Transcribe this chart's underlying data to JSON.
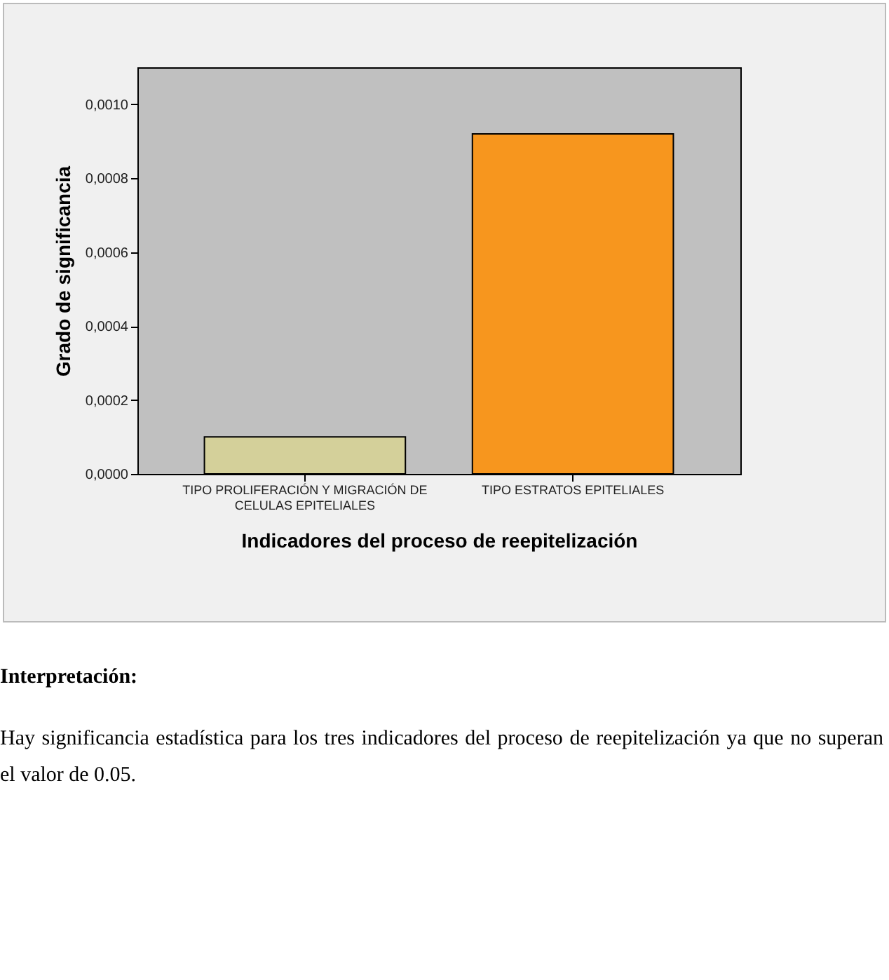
{
  "chart_data": {
    "type": "bar",
    "xlabel": "Indicadores del proceso de reepitelización",
    "ylabel": "Grado de significancia",
    "categories": [
      "TIPO PROLIFERACIÓN Y MIGRACIÓN DE CELULAS EPITELIALES",
      "TIPO ESTRATOS EPITELIALES"
    ],
    "values": [
      0.0001,
      0.00092
    ],
    "colors": [
      "#d4d09a",
      "#f7961e"
    ],
    "ylim": [
      0,
      0.0011
    ],
    "yticks": [
      {
        "value": 0,
        "label": "0,0000"
      },
      {
        "value": 0.0002,
        "label": "0,0002"
      },
      {
        "value": 0.0004,
        "label": "0,0004"
      },
      {
        "value": 0.0006,
        "label": "0,0006"
      },
      {
        "value": 0.0008,
        "label": "0,0008"
      },
      {
        "value": 0.001,
        "label": "0,0010"
      }
    ],
    "grid": false,
    "legend": false,
    "annotations": [
      "Interpretación:",
      "Hay significancia estadística para los tres indicadores del proceso de reepitelización ya que no superan el valor de 0.05."
    ]
  }
}
